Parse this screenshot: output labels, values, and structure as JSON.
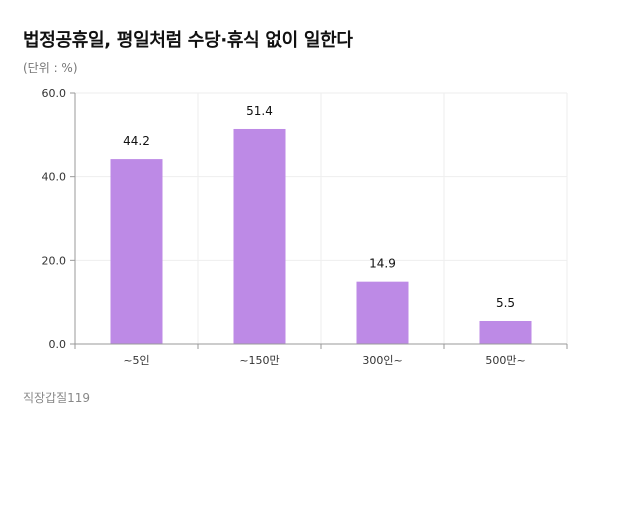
{
  "header": {
    "title": "법정공휴일, 평일처럼 수당·휴식 없이 일한다",
    "unit": "(단위 : %)"
  },
  "footer": {
    "source": "직장갑질119"
  },
  "colors": {
    "bar": "#bd8ae6",
    "grid": "#eeeeee",
    "axis": "#999999"
  },
  "chart_data": {
    "type": "bar",
    "title": "법정공휴일, 평일처럼 수당·휴식 없이 일한다",
    "categories": [
      "~5인",
      "~150만",
      "300인~",
      "500만~"
    ],
    "values": [
      44.2,
      51.4,
      14.9,
      5.5
    ],
    "value_labels": [
      "44.2",
      "51.4",
      "14.9",
      "5.5"
    ],
    "yticks": [
      0,
      20,
      40,
      60
    ],
    "ytick_labels": [
      "0.0",
      "20.0",
      "40.0",
      "60.0"
    ],
    "ylim": [
      0,
      60
    ],
    "xlabel": "",
    "ylabel": "(단위 : %)",
    "grid": true
  }
}
